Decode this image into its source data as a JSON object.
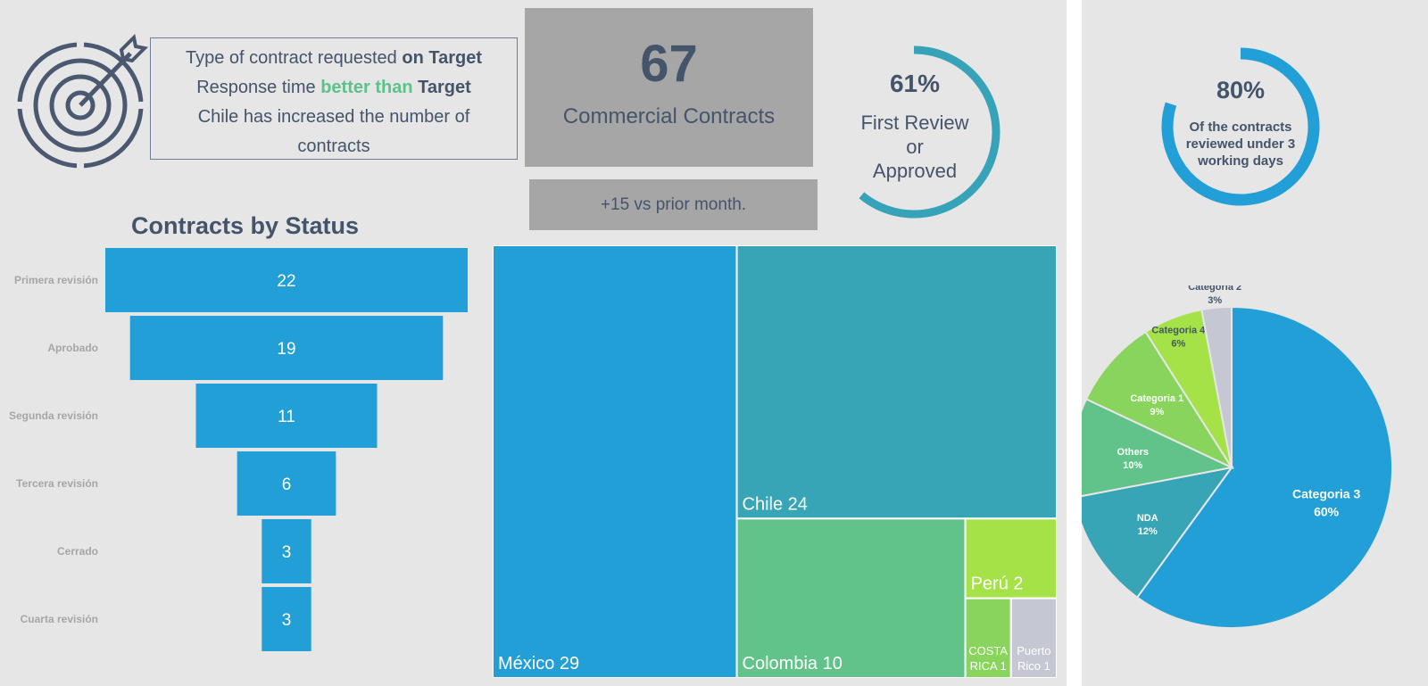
{
  "notes": {
    "line1_a": "Type of contract requested ",
    "line1_b": "on Target",
    "line2_a": "Response time ",
    "line2_b": "better than",
    "line2_c": " Target",
    "line3": "Chile has increased the number of",
    "line4": "contracts"
  },
  "kpi": {
    "value": "67",
    "label": "Commercial Contracts",
    "delta": "+15 vs prior month."
  },
  "ring_review": {
    "percent_text": "61%",
    "value": 61,
    "line1": "First Review",
    "line2": "or",
    "line3": "Approved",
    "color": "#37a3b8"
  },
  "ring_days": {
    "percent_text": "80%",
    "value": 80,
    "line1": "Of the contracts",
    "line2": "reviewed under 3",
    "line3": "working days",
    "color": "#229fd7"
  },
  "chart_data": [
    {
      "type": "bar",
      "subtype": "funnel",
      "title": "Contracts by Status",
      "categories": [
        "Primera revisión",
        "Aprobado",
        "Segunda revisión",
        "Tercera revisión",
        "Cerrado",
        "Cuarta revisión"
      ],
      "values": [
        22,
        19,
        11,
        6,
        3,
        3
      ],
      "color": "#229fd7"
    },
    {
      "type": "treemap",
      "items": [
        {
          "label": "México",
          "value": 29,
          "text": "México 29",
          "color": "#229fd7"
        },
        {
          "label": "Chile",
          "value": 24,
          "text": "Chile 24",
          "color": "#37a5b5"
        },
        {
          "label": "Colombia",
          "value": 10,
          "text": "Colombia 10",
          "color": "#62c38a"
        },
        {
          "label": "Perú",
          "value": 2,
          "text": "Perú 2",
          "color": "#a5e248"
        },
        {
          "label": "COSTA RICA",
          "value": 1,
          "text": "COSTA RICA 1",
          "color": "#88d45c"
        },
        {
          "label": "Puerto Rico",
          "value": 1,
          "text": "Puerto Rico 1",
          "color": "#c5c7d2"
        }
      ]
    },
    {
      "type": "pie",
      "slices": [
        {
          "label": "Categoria 3",
          "pct_text": "60%",
          "value": 60,
          "color": "#229fd7"
        },
        {
          "label": "NDA",
          "pct_text": "12%",
          "value": 12,
          "color": "#37a5b5"
        },
        {
          "label": "Others",
          "pct_text": "10%",
          "value": 10,
          "color": "#62c38a"
        },
        {
          "label": "Categoria 1",
          "pct_text": "9%",
          "value": 9,
          "color": "#88d45c"
        },
        {
          "label": "Categoria 4",
          "pct_text": "6%",
          "value": 6,
          "color": "#a5e248"
        },
        {
          "label": "Categoria 2",
          "pct_text": "3%",
          "value": 3,
          "color": "#c5c7d2"
        }
      ]
    }
  ]
}
